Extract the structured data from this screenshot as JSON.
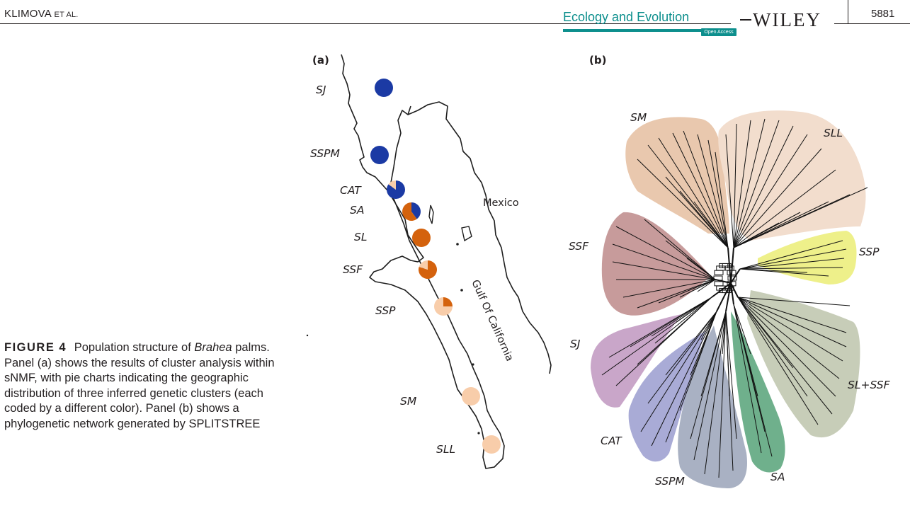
{
  "header": {
    "authors": "KLIMOVA",
    "authors_suffix": "ET AL.",
    "journal": "Ecology and Evolution",
    "open_access": "Open Access",
    "publisher": "WILEY",
    "page_number": "5881"
  },
  "figure": {
    "panel_a_label": "(a)",
    "panel_b_label": "(b)",
    "map_label_mexico": "Mexico",
    "map_label_gulf": "Gulf Of California",
    "colors": {
      "cluster_blue": "#1b3aa4",
      "cluster_orange": "#d4620d",
      "cluster_peach": "#f8cdaa"
    },
    "sites": [
      {
        "label": "SJ",
        "blue": 1.0,
        "orange": 0.0,
        "peach": 0.0
      },
      {
        "label": "SSPM",
        "blue": 1.0,
        "orange": 0.0,
        "peach": 0.0
      },
      {
        "label": "CAT",
        "blue": 0.85,
        "orange": 0.0,
        "peach": 0.15
      },
      {
        "label": "SA",
        "blue": 0.4,
        "orange": 0.6,
        "peach": 0.0
      },
      {
        "label": "SL",
        "blue": 0.0,
        "orange": 1.0,
        "peach": 0.0
      },
      {
        "label": "SSF",
        "blue": 0.0,
        "orange": 0.8,
        "peach": 0.2
      },
      {
        "label": "SSP",
        "blue": 0.0,
        "orange": 0.25,
        "peach": 0.75
      },
      {
        "label": "SM",
        "blue": 0.0,
        "orange": 0.0,
        "peach": 1.0
      },
      {
        "label": "SLL",
        "blue": 0.0,
        "orange": 0.0,
        "peach": 1.0
      }
    ],
    "network_groups": [
      {
        "label": "SM",
        "color": "#e9c8ae"
      },
      {
        "label": "SLL",
        "color": "#f2ddcd"
      },
      {
        "label": "SSP",
        "color": "#eef08a"
      },
      {
        "label": "SL+SSF",
        "color": "#c7cdb8"
      },
      {
        "label": "SA",
        "color": "#6fb08c"
      },
      {
        "label": "SSPM",
        "color": "#a9b1c3"
      },
      {
        "label": "CAT",
        "color": "#a9abd6"
      },
      {
        "label": "SJ",
        "color": "#c9a6c9"
      },
      {
        "label": "SSF",
        "color": "#c79b9b"
      }
    ]
  },
  "caption": {
    "label": "FIGURE 4",
    "genus": "Brahea",
    "text_before_genus": "Population structure of",
    "text_after_genus": "palms. Panel (a) shows the results of cluster analysis within sNMF, with pie charts indicating the geographic distribution of three inferred genetic clusters (each coded by a different color). Panel (b) shows a phylogenetic network generated by SPLITSTREE"
  }
}
